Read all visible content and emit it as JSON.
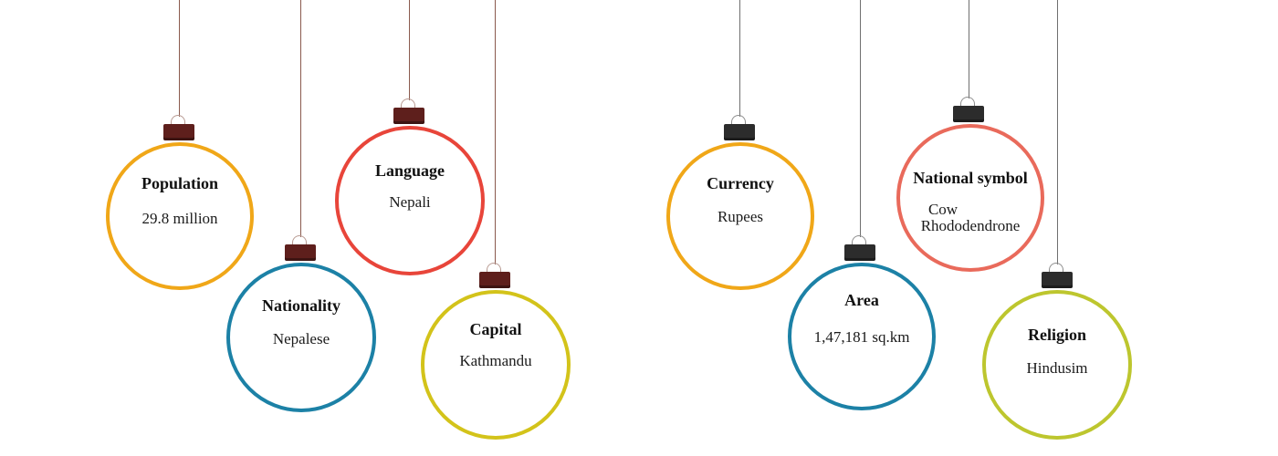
{
  "items": [
    {
      "id": "population",
      "label": "Population",
      "value": "29.8 million",
      "color": "#f0a718"
    },
    {
      "id": "nationality",
      "label": "Nationality",
      "value": "Nepalese",
      "color": "#1c81a6"
    },
    {
      "id": "language",
      "label": "Language",
      "value": "Nepali",
      "color": "#e8453a"
    },
    {
      "id": "capital",
      "label": "Capital",
      "value": "Kathmandu",
      "color": "#d3c31a"
    },
    {
      "id": "currency",
      "label": "Currency",
      "value": "Rupees",
      "color": "#f0a718"
    },
    {
      "id": "area",
      "label": "Area",
      "value": "1,47,181 sq.km",
      "color": "#1c81a6"
    },
    {
      "id": "national-symbol",
      "label": "National symbol",
      "values": [
        "Cow",
        "Rhododendrone"
      ],
      "color": "#e96a5b"
    },
    {
      "id": "religion",
      "label": "Religion",
      "value": "Hindusim",
      "color": "#bdc62e"
    }
  ]
}
